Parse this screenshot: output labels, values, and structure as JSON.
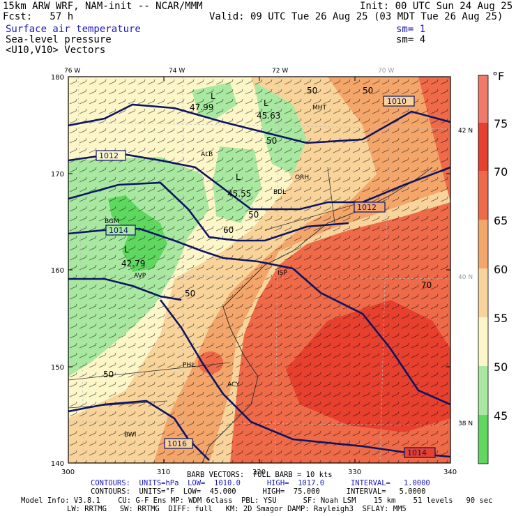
{
  "header": {
    "line1_left": "15km ARW WRF, NAM-init -- NCAR/MMM",
    "line1_right": "Init: 00 UTC Sun 24 Aug 25",
    "line2_left": "Fcst:   57 h",
    "line2_right": "Valid: 09 UTC Tue 26 Aug 25 (03 MDT Tue 26 Aug 25)",
    "field1": "Surface air temperature",
    "field1_sm": "sm= 1",
    "field2": "Sea-level pressure",
    "field2_sm": "sm= 4",
    "field3": "<U10,V10> Vectors"
  },
  "map": {
    "x_ticks": [
      "300",
      "310",
      "320",
      "330",
      "340"
    ],
    "y_ticks": [
      "180",
      "170",
      "160",
      "150",
      "140"
    ],
    "lon_labels": [
      "76 W",
      "74 W",
      "72 W",
      "70 W"
    ],
    "lat_labels": [
      "42 N",
      "40 N",
      "38 N"
    ],
    "city_labels": [
      "MHT",
      "ALB",
      "ORH",
      "BDL",
      "BGM",
      "AVP",
      "ISP",
      "ACY",
      "BWI",
      "PHL"
    ],
    "isobar_labels": [
      "1010",
      "1012",
      "1012",
      "1014",
      "1016",
      "1014"
    ],
    "temp_labels": [
      "50",
      "50",
      "50",
      "50",
      "50",
      "50",
      "60",
      "70",
      "L",
      "L",
      "L",
      "L"
    ],
    "minima": [
      "47.99",
      "45.63",
      "45.55",
      "42.79"
    ],
    "colors": {
      "t45": "#5fd85f",
      "t50": "#a8e8a0",
      "t55": "#fdf6c8",
      "t60": "#f9d49a",
      "t65": "#f4a66a",
      "t70": "#ee6a48",
      "t75": "#e8402e",
      "t80": "#f07a6a",
      "isobar": "#0d1464"
    }
  },
  "colorbar": {
    "unit": "°F",
    "labels": [
      "75",
      "70",
      "65",
      "60",
      "55",
      "50",
      "45"
    ]
  },
  "footer": {
    "barb_line": "BARB VECTORS:  FULL BARB = 10 kts",
    "contours1": "CONTOURS:  UNITS=hPa  LOW=  1010.0      HIGH=  1017.0      INTERVAL=   1.0000",
    "contours2": "CONTOURS:  UNITS=°F  LOW=  45.000      HIGH=  75.000      INTERVAL=   5.0000",
    "model1": "Model Info: V3.8.1    CU: G-F Ens MP: WDM 6class  PBL: YSU      SF: Noah LSM    15 km    51 levels   90 sec",
    "model2": "LW: RRTMG   SW: RRTMG  DIFF: full   KM: 2D Smagor DAMP: Rayleigh3  SFLAY: MM5"
  }
}
